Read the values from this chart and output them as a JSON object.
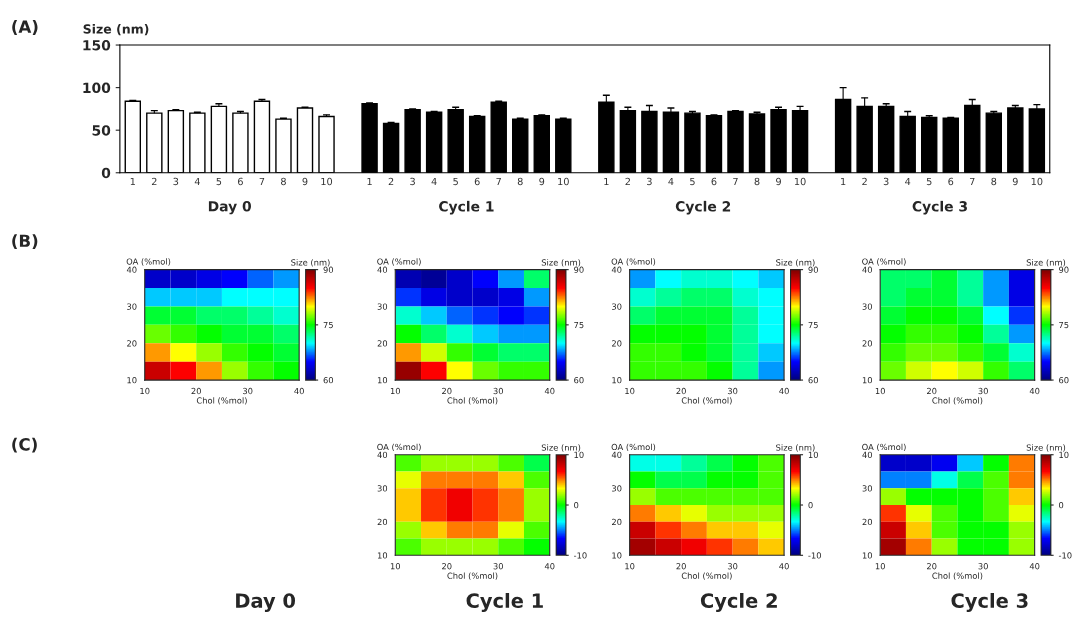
{
  "chart_data": [
    {
      "type": "bar",
      "ylabel": "Size (nm)",
      "ylim": [
        0,
        150
      ],
      "yticks": [
        0,
        50,
        100,
        150
      ],
      "categories": [
        "1",
        "2",
        "3",
        "4",
        "5",
        "6",
        "7",
        "8",
        "9",
        "10",
        null,
        "1",
        "2",
        "3",
        "4",
        "5",
        "6",
        "7",
        "8",
        "9",
        "10",
        null,
        "1",
        "2",
        "3",
        "4",
        "5",
        "6",
        "7",
        "8",
        "9",
        "10",
        null,
        "1",
        "2",
        "3",
        "4",
        "5",
        "6",
        "7",
        "8",
        "9",
        "10"
      ],
      "values": [
        84,
        70,
        73,
        70,
        78,
        70,
        84,
        63,
        76,
        66,
        null,
        81,
        58,
        74,
        71,
        74,
        66,
        83,
        63,
        67,
        63,
        null,
        83,
        73,
        72,
        71,
        70,
        67,
        72,
        69,
        74,
        73,
        null,
        86,
        78,
        78,
        66,
        65,
        64,
        79,
        70,
        76,
        75
      ],
      "errors": [
        1,
        3,
        1,
        1,
        3,
        2,
        2,
        1,
        1,
        2,
        null,
        1,
        1,
        1,
        1,
        3,
        1,
        1,
        1,
        1,
        1,
        null,
        8,
        4,
        7,
        5,
        2,
        1,
        1,
        2,
        3,
        5,
        null,
        14,
        10,
        3,
        6,
        2,
        1,
        7,
        2,
        3,
        5
      ],
      "colors": [
        "#ffffff",
        "#ffffff",
        "#ffffff",
        "#ffffff",
        "#ffffff",
        "#ffffff",
        "#ffffff",
        "#ffffff",
        "#ffffff",
        "#ffffff",
        null,
        "#000000",
        "#000000",
        "#000000",
        "#000000",
        "#000000",
        "#000000",
        "#000000",
        "#000000",
        "#000000",
        "#000000",
        null,
        "#000000",
        "#000000",
        "#000000",
        "#000000",
        "#000000",
        "#000000",
        "#000000",
        "#000000",
        "#000000",
        "#000000",
        null,
        "#000000",
        "#000000",
        "#000000",
        "#000000",
        "#000000",
        "#000000",
        "#000000",
        "#000000",
        "#000000",
        "#000000"
      ],
      "annotations": [
        "(A)",
        "Day 0",
        "Cycle 1",
        "Cycle 2",
        "Cycle 3"
      ]
    },
    {
      "type": "heatmap",
      "xlabel": "Chol (%mol)",
      "ylabel": "OA (%mol)",
      "clabel": "Size (nm)",
      "xlim": [
        10,
        40
      ],
      "ylim": [
        10,
        40
      ],
      "xticks": [
        10,
        20,
        30,
        40
      ],
      "yticks": [
        10,
        20,
        30,
        40
      ],
      "clim": [
        60,
        90
      ],
      "cticks": [
        60,
        75,
        90
      ],
      "cells": [
        [
          63,
          63,
          64,
          65,
          67,
          68
        ],
        [
          69,
          69,
          69,
          70,
          70,
          70
        ],
        [
          74,
          74,
          73,
          73,
          72,
          71
        ],
        [
          77,
          76,
          75,
          74,
          74,
          73
        ],
        [
          82,
          80,
          78,
          76,
          75,
          74
        ],
        [
          87,
          85,
          82,
          78,
          76,
          75
        ]
      ],
      "annotations": [
        "(B)"
      ]
    },
    {
      "type": "heatmap",
      "xlabel": "Chol (%mol)",
      "ylabel": "OA (%mol)",
      "clabel": "Size (nm)",
      "xlim": [
        10,
        40
      ],
      "ylim": [
        10,
        40
      ],
      "xticks": [
        10,
        20,
        30,
        40
      ],
      "yticks": [
        10,
        20,
        30,
        40
      ],
      "clim": [
        60,
        90
      ],
      "cticks": [
        60,
        75,
        90
      ],
      "cells": [
        [
          62,
          61,
          63,
          65,
          68,
          73
        ],
        [
          66,
          64,
          63,
          63,
          64,
          68
        ],
        [
          71,
          69,
          67,
          66,
          65,
          66
        ],
        [
          75,
          73,
          71,
          69,
          68,
          68
        ],
        [
          82,
          79,
          76,
          74,
          73,
          73
        ],
        [
          89,
          85,
          80,
          77,
          76,
          76
        ]
      ]
    },
    {
      "type": "heatmap",
      "xlabel": "Chol (%mol)",
      "ylabel": "OA (%mol)",
      "clabel": "Size (nm)",
      "xlim": [
        10,
        40
      ],
      "ylim": [
        10,
        40
      ],
      "xticks": [
        10,
        20,
        30,
        40
      ],
      "yticks": [
        10,
        20,
        30,
        40
      ],
      "clim": [
        60,
        90
      ],
      "cticks": [
        60,
        75,
        90
      ],
      "cells": [
        [
          68,
          70,
          71,
          71,
          70,
          69
        ],
        [
          71,
          72,
          73,
          73,
          71,
          70
        ],
        [
          73,
          74,
          74,
          74,
          72,
          70
        ],
        [
          75,
          75,
          75,
          74,
          72,
          70
        ],
        [
          76,
          76,
          75,
          74,
          72,
          69
        ],
        [
          76,
          76,
          76,
          75,
          72,
          68
        ]
      ]
    },
    {
      "type": "heatmap",
      "xlabel": "Chol (%mol)",
      "ylabel": "OA (%mol)",
      "clabel": "Size (nm)",
      "xlim": [
        10,
        40
      ],
      "ylim": [
        10,
        40
      ],
      "xticks": [
        10,
        20,
        30,
        40
      ],
      "yticks": [
        10,
        20,
        30,
        40
      ],
      "clim": [
        60,
        90
      ],
      "cticks": [
        60,
        75,
        90
      ],
      "cells": [
        [
          73,
          73,
          74,
          72,
          68,
          64
        ],
        [
          73,
          74,
          74,
          72,
          68,
          64
        ],
        [
          74,
          75,
          75,
          74,
          70,
          66
        ],
        [
          75,
          76,
          76,
          75,
          72,
          68
        ],
        [
          76,
          77,
          77,
          76,
          74,
          71
        ],
        [
          77,
          79,
          80,
          79,
          76,
          73
        ]
      ]
    },
    {
      "type": "heatmap",
      "xlabel": "Chol (%mol)",
      "ylabel": "OA (%mol)",
      "clabel": "Size (nm)",
      "xlim": [
        10,
        40
      ],
      "ylim": [
        10,
        40
      ],
      "xticks": [
        10,
        20,
        30,
        40
      ],
      "yticks": [
        10,
        20,
        30,
        40
      ],
      "clim": [
        -10,
        10
      ],
      "cticks": [
        -10,
        0,
        10
      ],
      "cells": [
        [
          1,
          2,
          2,
          2,
          1,
          -1
        ],
        [
          3,
          5,
          5,
          5,
          4,
          1
        ],
        [
          4,
          6,
          7,
          6,
          5,
          2
        ],
        [
          4,
          6,
          7,
          6,
          5,
          2
        ],
        [
          2,
          4,
          5,
          5,
          3,
          1
        ],
        [
          1,
          2,
          2,
          2,
          1,
          0
        ]
      ],
      "annotations": [
        "(C)",
        "Day 0",
        "Cycle 1"
      ]
    },
    {
      "type": "heatmap",
      "xlabel": "Chol (%mol)",
      "ylabel": "OA (%mol)",
      "clabel": "Size (nm)",
      "xlim": [
        10,
        40
      ],
      "ylim": [
        10,
        40
      ],
      "xticks": [
        10,
        20,
        30,
        40
      ],
      "yticks": [
        10,
        20,
        30,
        40
      ],
      "clim": [
        -10,
        10
      ],
      "cticks": [
        -10,
        0,
        10
      ],
      "cells": [
        [
          -3,
          -3,
          -2,
          -1,
          0,
          1
        ],
        [
          0,
          -1,
          -1,
          0,
          0,
          1
        ],
        [
          2,
          1,
          1,
          1,
          1,
          1
        ],
        [
          5,
          4,
          3,
          2,
          2,
          2
        ],
        [
          8,
          6,
          5,
          4,
          4,
          3
        ],
        [
          9,
          8,
          7,
          6,
          5,
          4
        ]
      ],
      "annotations": [
        "Cycle 2"
      ]
    },
    {
      "type": "heatmap",
      "xlabel": "Chol (%mol)",
      "ylabel": "OA (%mol)",
      "clabel": "Size (nm)",
      "xlim": [
        10,
        40
      ],
      "ylim": [
        10,
        40
      ],
      "xticks": [
        10,
        20,
        30,
        40
      ],
      "yticks": [
        10,
        20,
        30,
        40
      ],
      "clim": [
        -10,
        10
      ],
      "cticks": [
        -10,
        0,
        10
      ],
      "cells": [
        [
          -8,
          -8,
          -7,
          -4,
          0,
          5
        ],
        [
          -5,
          -5,
          -3,
          -1,
          1,
          5
        ],
        [
          2,
          0,
          0,
          0,
          1,
          4
        ],
        [
          6,
          3,
          1,
          0,
          1,
          3
        ],
        [
          8,
          4,
          1,
          0,
          0,
          2
        ],
        [
          9,
          5,
          2,
          0,
          0,
          2
        ]
      ],
      "annotations": [
        "Cycle 3"
      ]
    }
  ]
}
